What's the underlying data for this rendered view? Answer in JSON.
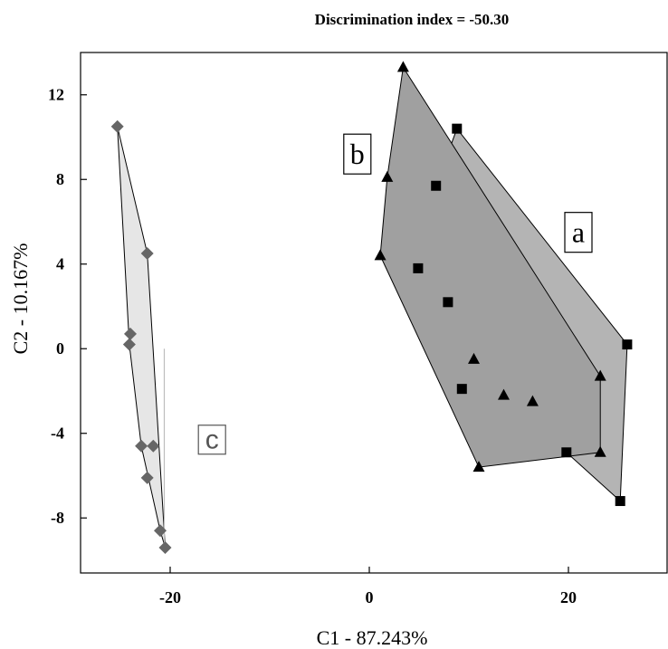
{
  "chart_data": {
    "type": "scatter",
    "title": "Discrimination index = -50.30",
    "xlabel": "C1 - 87.243%",
    "ylabel": "C2 - 10.167%",
    "xlim": [
      -29,
      30
    ],
    "ylim": [
      -10.6,
      14
    ],
    "xticks": [
      -20,
      0,
      20
    ],
    "yticks": [
      -8,
      -4,
      0,
      4,
      8,
      12
    ],
    "grid": false,
    "series": [
      {
        "name": "a",
        "marker": "square",
        "color": "#000000",
        "hull_fill": "#b4b4b4",
        "points": [
          [
            8.8,
            10.4
          ],
          [
            6.7,
            7.7
          ],
          [
            4.9,
            3.8
          ],
          [
            7.9,
            2.2
          ],
          [
            9.3,
            -1.9
          ],
          [
            19.8,
            -4.9
          ],
          [
            25.2,
            -7.2
          ],
          [
            25.9,
            0.2
          ]
        ],
        "hull": [
          [
            8.8,
            10.4
          ],
          [
            25.9,
            0.2
          ],
          [
            25.2,
            -7.2
          ],
          [
            19.8,
            -4.9
          ],
          [
            9.3,
            -1.9
          ],
          [
            4.9,
            3.8
          ],
          [
            6.7,
            7.7
          ]
        ]
      },
      {
        "name": "b",
        "marker": "triangle",
        "color": "#000000",
        "hull_fill": "#a0a0a0",
        "points": [
          [
            3.4,
            13.3
          ],
          [
            1.8,
            8.1
          ],
          [
            1.1,
            4.4
          ],
          [
            10.5,
            -0.5
          ],
          [
            13.5,
            -2.2
          ],
          [
            16.4,
            -2.5
          ],
          [
            23.2,
            -1.3
          ],
          [
            23.2,
            -4.9
          ],
          [
            11.0,
            -5.6
          ]
        ],
        "hull": [
          [
            3.4,
            13.3
          ],
          [
            23.2,
            -1.3
          ],
          [
            23.2,
            -4.9
          ],
          [
            11.0,
            -5.6
          ],
          [
            1.1,
            4.4
          ],
          [
            1.8,
            8.1
          ]
        ]
      },
      {
        "name": "c",
        "marker": "diamond",
        "color": "#666666",
        "hull_fill": "#e6e6e6",
        "points": [
          [
            -25.3,
            10.5
          ],
          [
            -22.3,
            4.5
          ],
          [
            -24.0,
            0.7
          ],
          [
            -24.1,
            0.2
          ],
          [
            -22.9,
            -4.6
          ],
          [
            -21.7,
            -4.6
          ],
          [
            -22.3,
            -6.1
          ],
          [
            -21.0,
            -8.6
          ],
          [
            -20.5,
            -9.4
          ]
        ],
        "hull": [
          [
            -25.3,
            10.5
          ],
          [
            -22.3,
            4.5
          ],
          [
            -20.5,
            -9.4
          ],
          [
            -21.0,
            -8.6
          ],
          [
            -22.9,
            -4.6
          ],
          [
            -24.1,
            0.2
          ]
        ]
      }
    ],
    "labels": [
      {
        "text": "a",
        "style": "serif",
        "x": 21.0,
        "y": 5.5
      },
      {
        "text": "b",
        "style": "serif",
        "x": -1.2,
        "y": 9.2
      },
      {
        "text": "c",
        "style": "sans",
        "x": -15.8,
        "y": -4.3
      }
    ]
  }
}
